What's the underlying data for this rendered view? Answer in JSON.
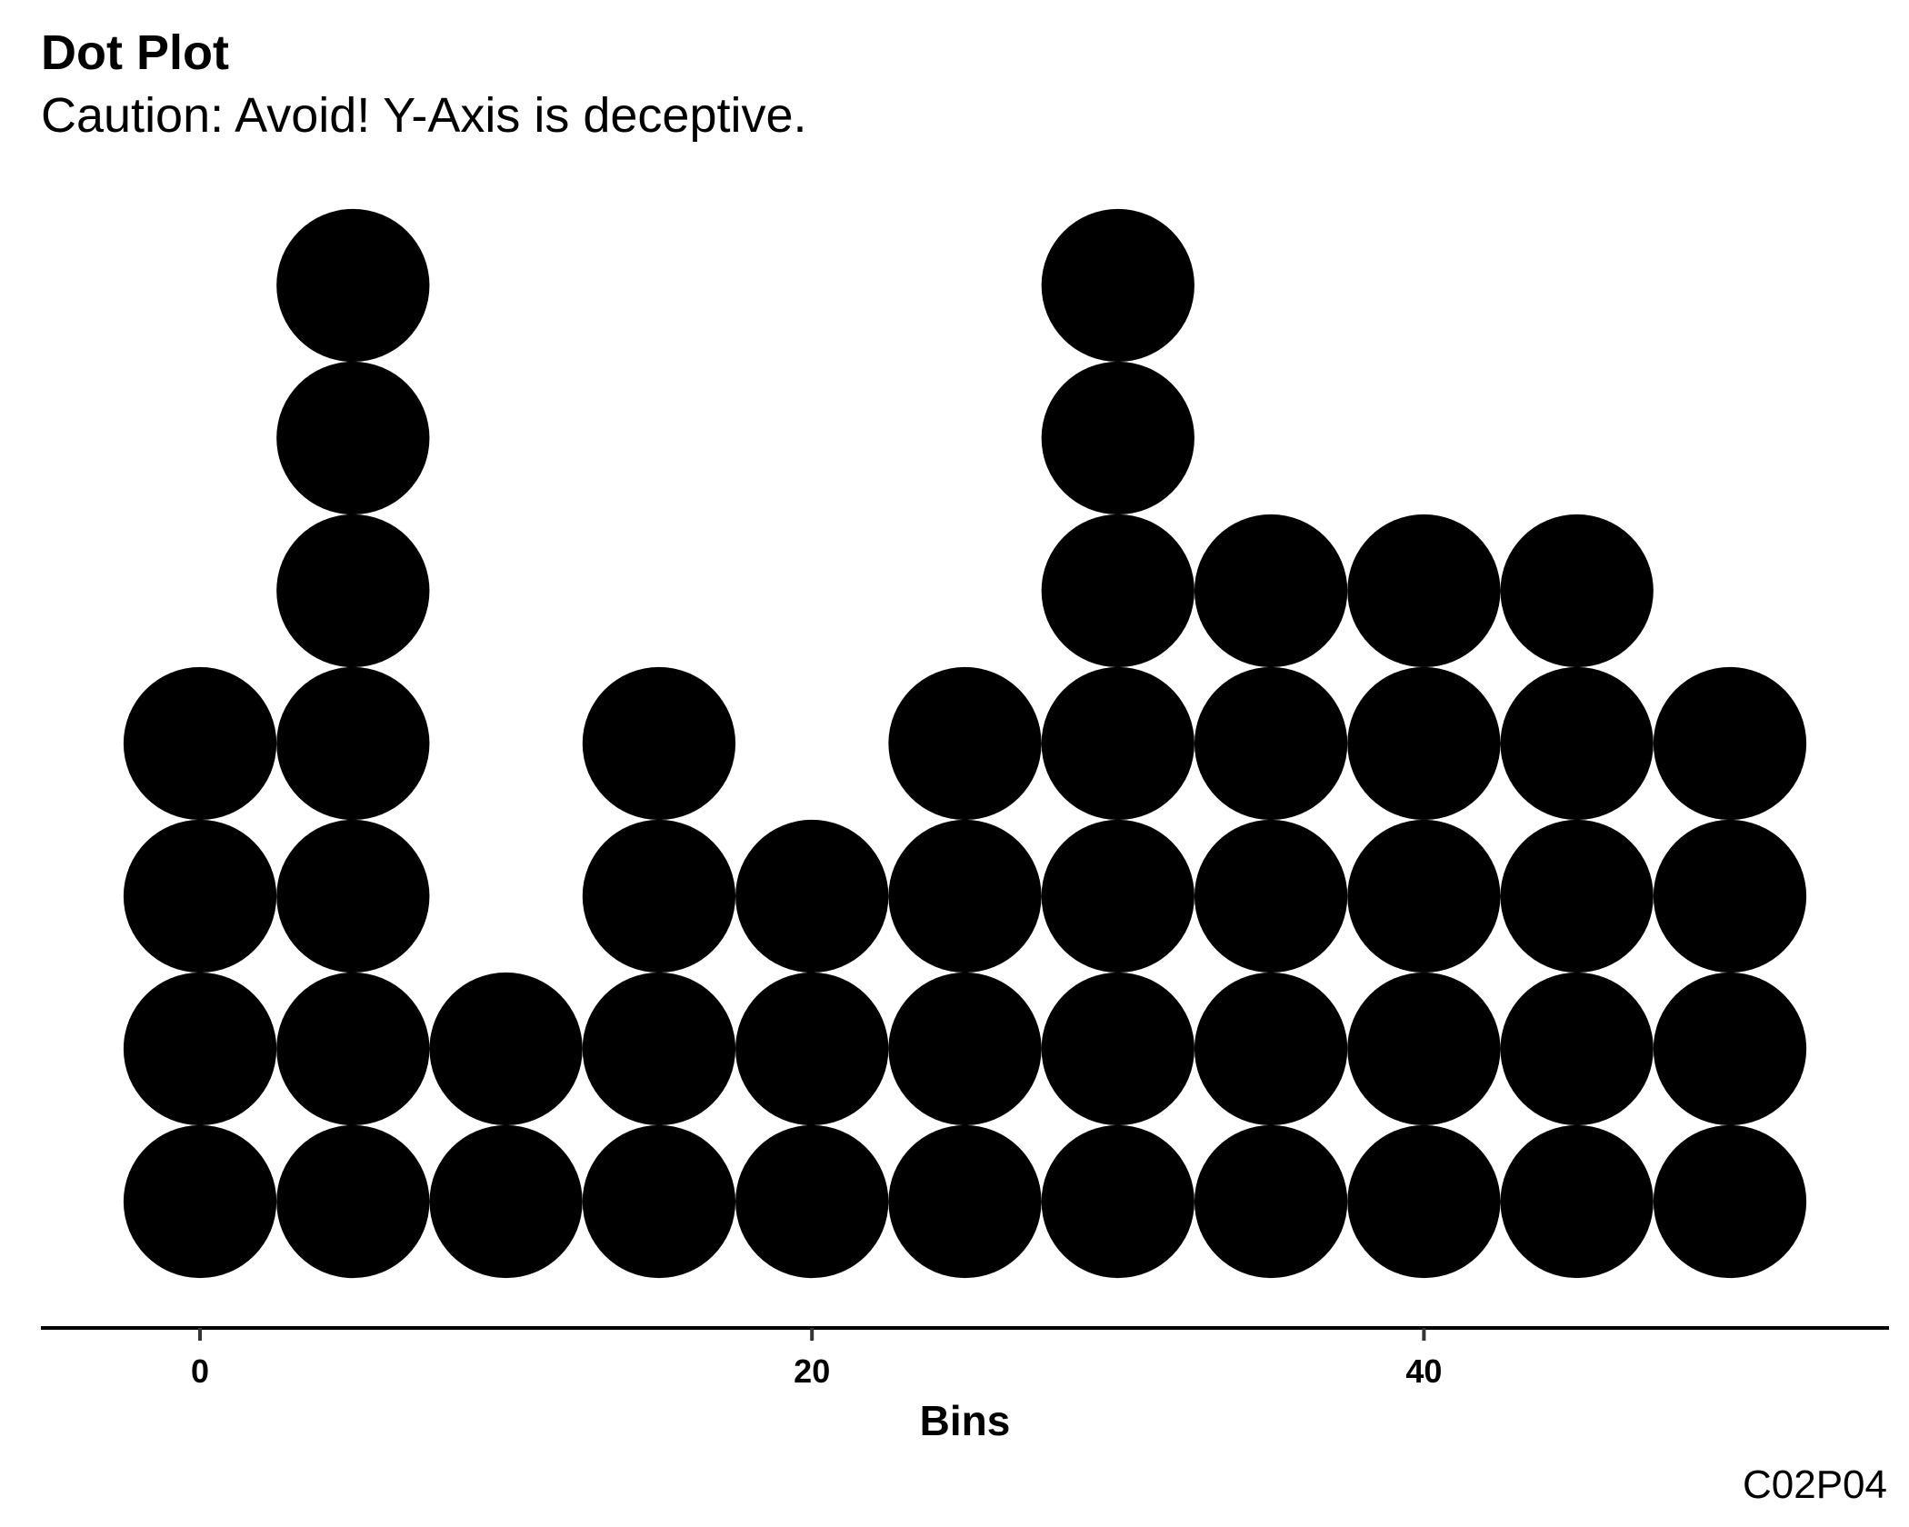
{
  "chart_data": {
    "type": "dotplot",
    "title": "Dot Plot",
    "subtitle": "Caution: Avoid! Y-Axis is deceptive.",
    "caption": "C02P04",
    "xlabel": "Bins",
    "ylabel": "",
    "xlim": [
      -5.2,
      55.2
    ],
    "x_ticks": [
      0,
      20,
      40
    ],
    "bin_width": 5,
    "y_axis_shown": false,
    "grid": false,
    "legend": "none",
    "dot_color": "#000000",
    "bins": [
      {
        "x": 0,
        "count": 4
      },
      {
        "x": 5,
        "count": 7
      },
      {
        "x": 10,
        "count": 2
      },
      {
        "x": 15,
        "count": 4
      },
      {
        "x": 20,
        "count": 3
      },
      {
        "x": 25,
        "count": 4
      },
      {
        "x": 30,
        "count": 7
      },
      {
        "x": 35,
        "count": 5
      },
      {
        "x": 40,
        "count": 5
      },
      {
        "x": 45,
        "count": 5
      },
      {
        "x": 50,
        "count": 4
      }
    ]
  }
}
